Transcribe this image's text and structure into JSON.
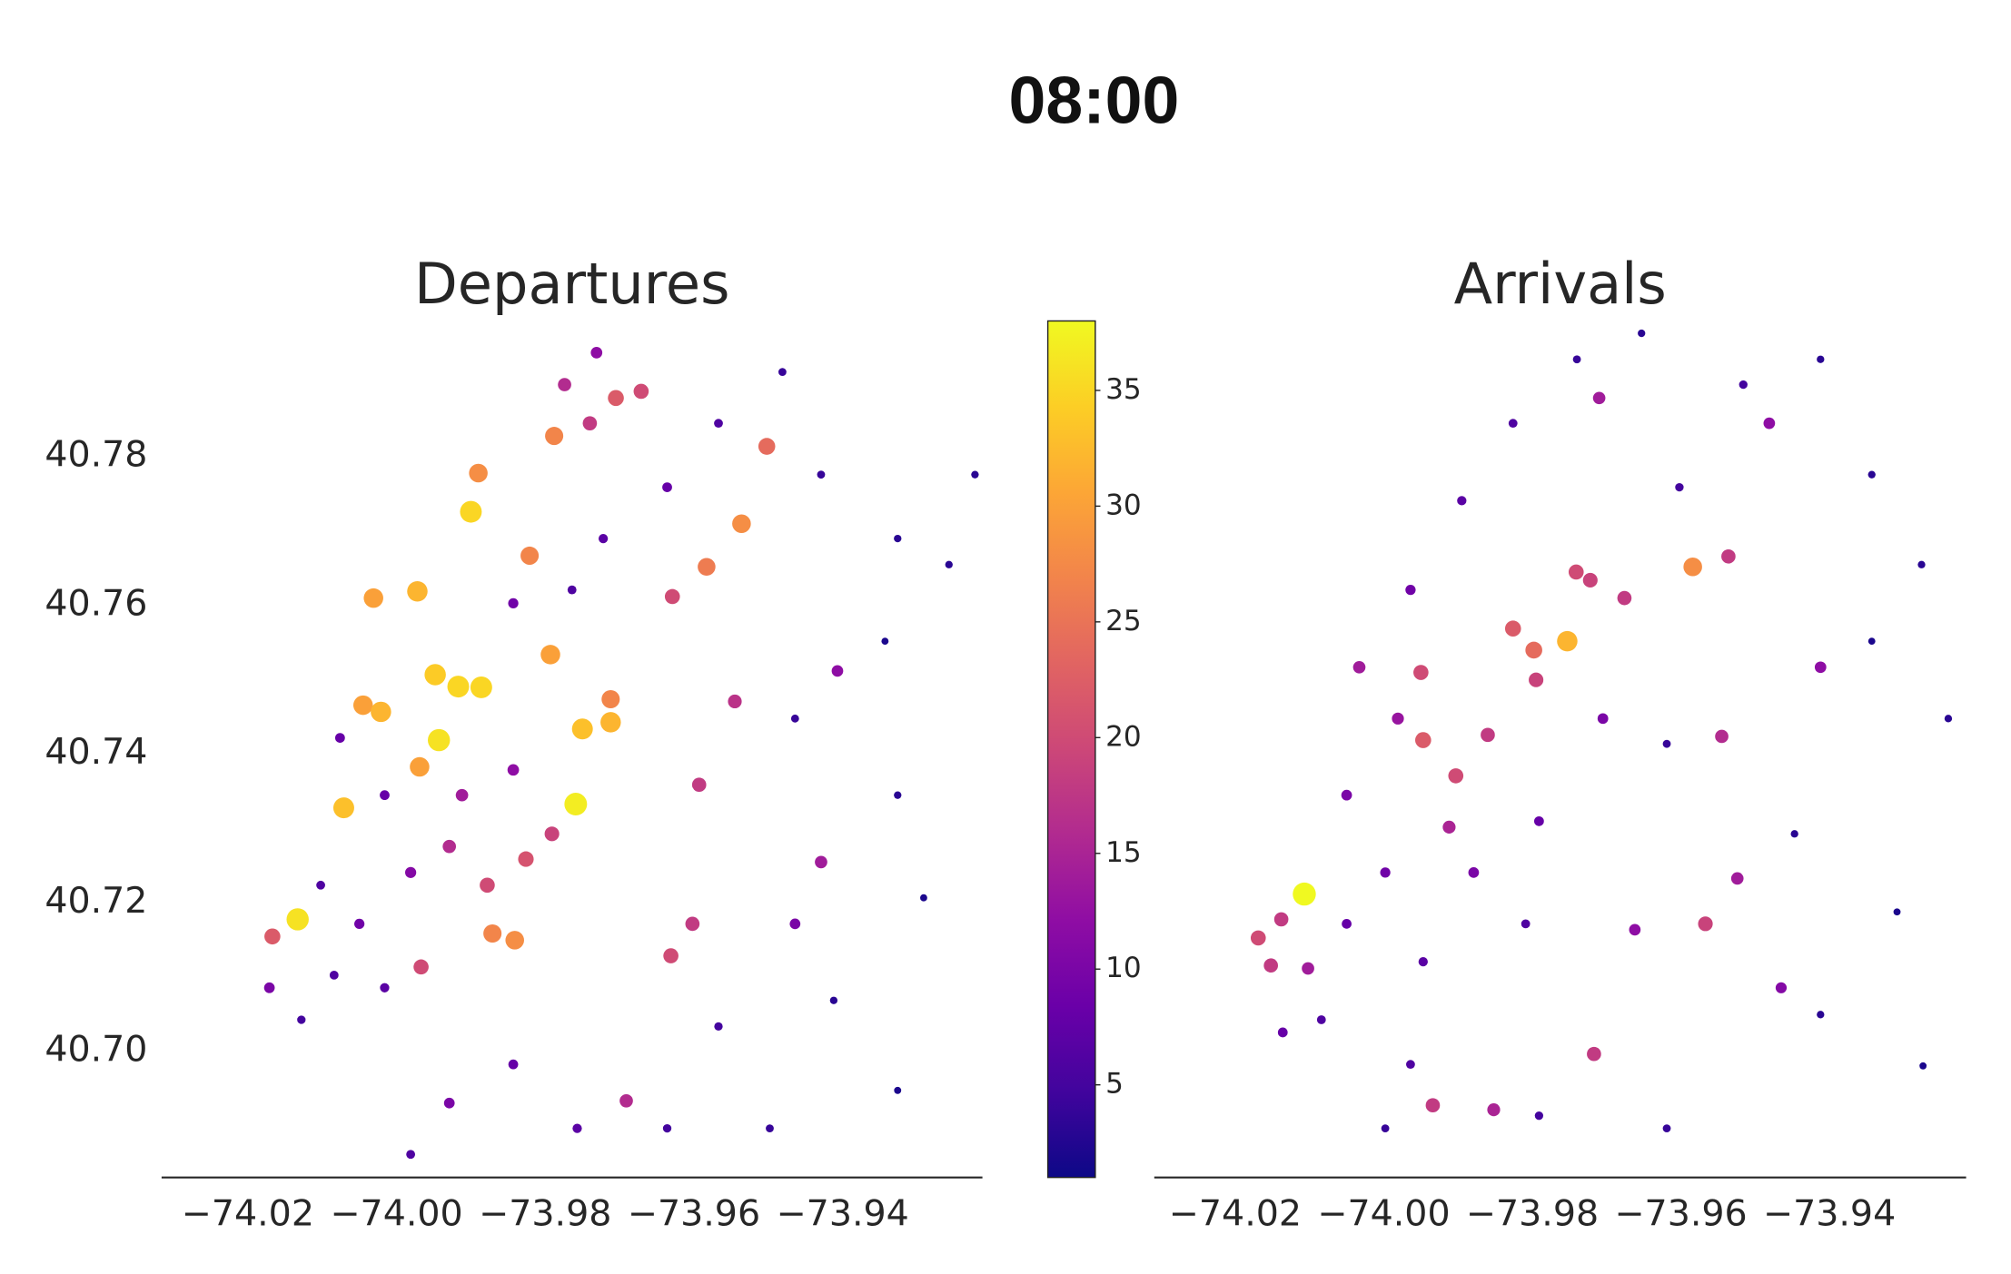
{
  "title": "08:00",
  "colorbar": {
    "colormap": "plasma",
    "lim": [
      1,
      38
    ],
    "ticks": [
      5,
      10,
      15,
      20,
      25,
      30,
      35
    ]
  },
  "chart_data": [
    {
      "type": "scatter",
      "title": "Departures",
      "xlim": [
        -74.0316,
        -73.9212
      ],
      "ylim": [
        40.6831,
        40.7974
      ],
      "xticks": [
        {
          "value": -74.02,
          "label": "−74.02"
        },
        {
          "value": -74.0,
          "label": "−74.00"
        },
        {
          "value": -73.98,
          "label": "−73.98"
        },
        {
          "value": -73.96,
          "label": "−73.96"
        },
        {
          "value": -73.94,
          "label": "−73.94"
        }
      ],
      "yticks": [
        {
          "value": 40.7,
          "label": "40.70"
        },
        {
          "value": 40.72,
          "label": "40.72"
        },
        {
          "value": 40.74,
          "label": "40.74"
        },
        {
          "value": 40.76,
          "label": "40.76"
        },
        {
          "value": 40.78,
          "label": "40.78"
        }
      ],
      "x": [
        -74.0133,
        -74.0167,
        -74.0171,
        -74.0128,
        -74.0071,
        -74.0076,
        -74.0102,
        -74.005,
        -74.0016,
        -73.9943,
        -73.9759,
        -73.99,
        -73.989,
        -74.0031,
        -73.9972,
        -73.9948,
        -73.9917,
        -73.9886,
        -73.975,
        -73.9712,
        -73.9712,
        -73.9788,
        -73.9821,
        -73.9793,
        -73.9536,
        -73.9583,
        -73.9502,
        -74.0045,
        -74.0021,
        -73.9969,
        -73.9871,
        -73.9841,
        -73.9967,
        -73.9878,
        -73.9826,
        -73.9791,
        -73.9929,
        -73.9705,
        -73.9671,
        -73.974,
        -73.9774,
        -73.9731,
        -73.9629,
        -73.9593,
        -73.9545,
        -73.9602,
        -73.9631,
        -73.9429,
        -73.9407,
        -73.9691,
        -73.9326,
        -73.9257,
        -73.9343,
        -73.9222,
        -73.9464,
        -73.9326,
        -73.9291,
        -73.9412,
        -73.9326,
        -73.9498,
        -73.9567,
        -73.9843,
        -73.9929,
        -73.9981,
        -73.9757,
        -73.9636,
        -73.9429,
        -73.9481,
        -73.9567,
        -73.9636,
        -73.9722,
        -73.9764,
        -73.9843,
        -74.0016,
        -73.9981,
        -73.9912,
        -73.9843,
        -74.0084,
        -73.9464
      ],
      "y": [
        40.7178,
        40.7155,
        40.7086,
        40.7043,
        40.7328,
        40.7422,
        40.7224,
        40.7172,
        40.7086,
        40.7419,
        40.7333,
        40.7726,
        40.7778,
        40.761,
        40.7619,
        40.7507,
        40.7491,
        40.749,
        40.7434,
        40.7443,
        40.7474,
        40.7828,
        40.7667,
        40.7534,
        40.771,
        40.7652,
        40.7814,
        40.7466,
        40.7457,
        40.7383,
        40.7159,
        40.715,
        40.7114,
        40.7224,
        40.7259,
        40.7293,
        40.7276,
        40.7879,
        40.7888,
        40.7845,
        40.7897,
        40.794,
        40.7612,
        40.7359,
        40.7471,
        40.7172,
        40.7129,
        40.7255,
        40.7512,
        40.6934,
        40.769,
        40.7655,
        40.7552,
        40.7776,
        40.7448,
        40.7345,
        40.7207,
        40.7069,
        40.6948,
        40.6897,
        40.7034,
        40.6983,
        40.6931,
        40.6862,
        40.6897,
        40.6897,
        40.7776,
        40.7914,
        40.7845,
        40.7759,
        40.769,
        40.7621,
        40.7603,
        40.7345,
        40.7241,
        40.7345,
        40.7379,
        40.7103,
        40.7172
      ],
      "values": [
        36,
        22,
        10,
        5,
        33,
        8,
        6,
        9,
        7,
        36,
        37,
        35,
        28,
        30,
        32,
        34,
        35,
        35,
        33,
        32,
        27,
        27,
        27,
        30,
        28,
        26,
        24,
        30,
        32,
        30,
        27,
        28,
        20,
        20,
        21,
        19,
        16,
        22,
        20,
        18,
        16,
        12,
        20,
        18,
        17,
        18,
        20,
        14,
        12,
        16,
        3,
        3,
        2,
        3,
        4,
        3,
        2,
        3,
        2,
        4,
        5,
        8,
        10,
        6,
        7,
        5,
        4,
        4,
        6,
        8,
        7,
        6,
        9,
        8,
        11,
        14,
        12,
        6,
        10
      ]
    },
    {
      "type": "scatter",
      "title": "Arrivals",
      "xlim": [
        -74.0309,
        -73.9216
      ],
      "ylim": [
        40.6831,
        40.7974
      ],
      "xticks": [
        {
          "value": -74.02,
          "label": "−74.02"
        },
        {
          "value": -74.0,
          "label": "−74.00"
        },
        {
          "value": -73.98,
          "label": "−73.98"
        },
        {
          "value": -73.96,
          "label": "−73.96"
        },
        {
          "value": -73.94,
          "label": "−73.94"
        }
      ],
      "x": [
        -74.0107,
        -74.0169,
        -74.0138,
        -74.0152,
        -74.0102,
        -74.0136,
        -74.0084,
        -73.9584,
        -73.9753,
        -73.9798,
        -73.9826,
        -73.9741,
        -73.9722,
        -73.9947,
        -73.995,
        -73.9903,
        -73.986,
        -73.9795,
        -73.9676,
        -73.9536,
        -73.9567,
        -73.9717,
        -73.9934,
        -73.971,
        -73.9545,
        -73.9912,
        -74.0033,
        -73.9981,
        -74.005,
        -73.9998,
        -73.9879,
        -73.9791,
        -73.9705,
        -73.9481,
        -73.9412,
        -73.9465,
        -73.9662,
        -73.9524,
        -73.9852,
        -73.9343,
        -73.9276,
        -73.9343,
        -73.924,
        -73.9619,
        -73.9447,
        -73.9309,
        -73.9412,
        -73.9274,
        -73.9619,
        -73.9791,
        -73.9964,
        -73.9998,
        -73.9653,
        -73.974,
        -73.9826,
        -73.9895,
        -73.9964,
        -73.9602,
        -73.9516,
        -73.9412,
        -73.9809,
        -73.9947,
        -74.005
      ],
      "y": [
        40.7212,
        40.7153,
        40.7178,
        40.7116,
        40.7112,
        40.7026,
        40.7043,
        40.7652,
        40.7552,
        40.754,
        40.7569,
        40.7645,
        40.7634,
        40.7419,
        40.751,
        40.7371,
        40.7426,
        40.75,
        40.761,
        40.7666,
        40.7172,
        40.6997,
        40.6928,
        40.7879,
        40.7424,
        40.7302,
        40.7517,
        40.7448,
        40.7345,
        40.7241,
        40.7241,
        40.731,
        40.7448,
        40.7845,
        40.7517,
        40.7086,
        40.7164,
        40.7233,
        40.6922,
        40.7776,
        40.7655,
        40.7552,
        40.7448,
        40.7414,
        40.7293,
        40.7188,
        40.705,
        40.6981,
        40.6897,
        40.6914,
        40.6983,
        40.6897,
        40.7966,
        40.7931,
        40.7845,
        40.7741,
        40.7621,
        40.7759,
        40.7897,
        40.7931,
        40.7172,
        40.7121,
        40.7172
      ],
      "values": [
        38,
        20,
        18,
        18,
        14,
        8,
        6,
        28,
        32,
        24,
        22,
        20,
        19,
        22,
        20,
        20,
        18,
        19,
        18,
        18,
        19,
        18,
        18,
        14,
        16,
        15,
        14,
        13,
        10,
        9,
        10,
        8,
        10,
        12,
        12,
        11,
        12,
        14,
        15,
        3,
        3,
        2,
        3,
        4,
        3,
        2,
        3,
        2,
        4,
        5,
        6,
        4,
        3,
        4,
        6,
        7,
        9,
        5,
        5,
        3,
        6,
        7,
        8
      ]
    }
  ]
}
